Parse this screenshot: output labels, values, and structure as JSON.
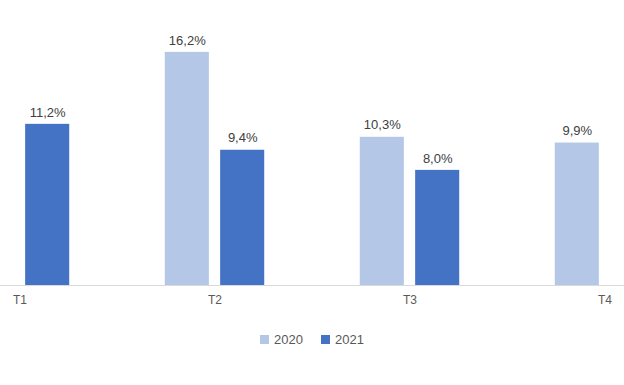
{
  "chart_data": {
    "type": "bar",
    "categories": [
      "T1",
      "T2",
      "T3",
      "T4"
    ],
    "series": [
      {
        "name": "2020",
        "color": "#b4c7e7",
        "values": [
          null,
          16.2,
          10.3,
          9.9
        ],
        "value_labels": [
          null,
          "16,2%",
          "10,3%",
          "9,9%"
        ]
      },
      {
        "name": "2021",
        "color": "#4472c4",
        "values": [
          11.2,
          9.4,
          8.0,
          null
        ],
        "value_labels": [
          "11,2%",
          "9,4%",
          "8,0%",
          null
        ]
      }
    ],
    "ylim": [
      0,
      18
    ],
    "grid": false,
    "data_labels": true,
    "tick_labels": "x",
    "legend": "bottom"
  }
}
